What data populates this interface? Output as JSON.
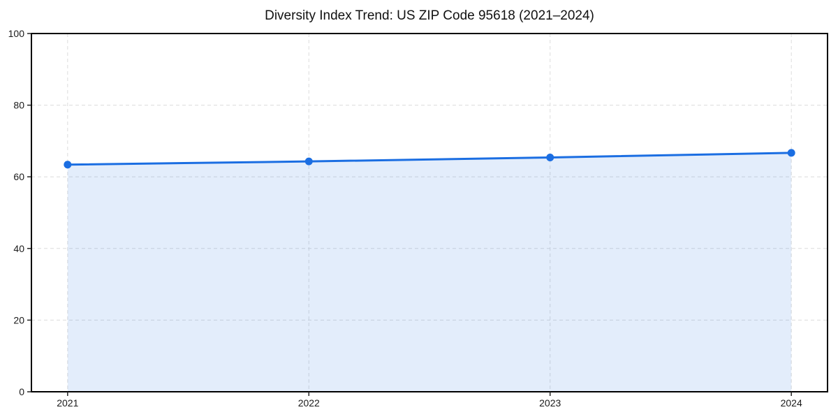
{
  "figure": {
    "background": "#ffffff"
  },
  "chart_data": {
    "type": "area",
    "title": "Diversity Index Trend: US ZIP Code 95618 (2021–2024)",
    "categories": [
      "2021",
      "2022",
      "2023",
      "2024"
    ],
    "values": [
      63.4,
      64.3,
      65.4,
      66.7
    ],
    "xlabel": "",
    "ylabel": "",
    "ylim": [
      0,
      100
    ],
    "yticks": [
      0,
      20,
      40,
      60,
      80,
      100
    ],
    "grid": true,
    "grid_style": "dashed",
    "legend": "none",
    "marker": "circle",
    "colors": {
      "line": "#1b6ee2",
      "marker": "#1b6ee2",
      "fill": "#1b6ee2",
      "grid": "#dcdcdc",
      "spine": "#000000",
      "tick": "#222222",
      "tick_label": "#1a1a1a",
      "title": "#111111",
      "background": "#ffffff"
    },
    "fill_opacity": 0.12
  }
}
